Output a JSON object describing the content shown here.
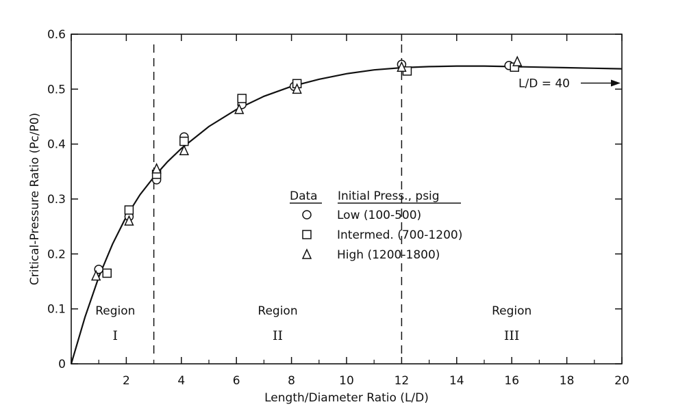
{
  "chart_data": {
    "type": "scatter",
    "xlabel": "Length/Diameter Ratio (L/D)",
    "ylabel": "Critical-Pressure Ratio (Pc/P0)",
    "xlim": [
      0,
      20
    ],
    "ylim": [
      0,
      0.6
    ],
    "x_ticks": [
      0,
      2,
      4,
      6,
      8,
      10,
      12,
      14,
      16,
      18,
      20
    ],
    "x_tick_labels": [
      "",
      "2",
      "4",
      "6",
      "8",
      "10",
      "12",
      "14",
      "16",
      "18",
      "20"
    ],
    "y_ticks": [
      0,
      0.1,
      0.2,
      0.3,
      0.4,
      0.5,
      0.6
    ],
    "y_tick_labels": [
      "0",
      "0.1",
      "0.2",
      "0.3",
      "0.4",
      "0.5",
      "0.6"
    ],
    "grid": false,
    "legend": {
      "position": "center",
      "col1_header": "Data",
      "col2_header": "Initial Press., psig",
      "entries": [
        {
          "marker": "circle",
          "label": "Low (100-500)"
        },
        {
          "marker": "square",
          "label": "Intermed. (700-1200)"
        },
        {
          "marker": "triangle",
          "label": "High (1200-1800)"
        }
      ]
    },
    "series": [
      {
        "marker": "circle",
        "x": [
          1.0,
          2.1,
          3.1,
          4.1,
          6.2,
          8.1,
          12.0,
          15.9
        ],
        "y": [
          0.172,
          0.268,
          0.335,
          0.413,
          0.472,
          0.505,
          0.545,
          0.543
        ]
      },
      {
        "marker": "square",
        "x": [
          1.3,
          2.1,
          3.1,
          4.1,
          6.2,
          8.2,
          12.2,
          16.1
        ],
        "y": [
          0.165,
          0.28,
          0.345,
          0.405,
          0.483,
          0.51,
          0.533,
          0.54
        ]
      },
      {
        "marker": "triangle",
        "x": [
          0.9,
          2.1,
          3.1,
          4.1,
          6.1,
          8.2,
          12.0,
          16.2
        ],
        "y": [
          0.16,
          0.26,
          0.355,
          0.388,
          0.463,
          0.5,
          0.54,
          0.55
        ]
      }
    ],
    "curve": {
      "x": [
        0,
        0.5,
        1,
        1.5,
        2,
        2.5,
        3,
        3.5,
        4,
        5,
        6,
        7,
        8,
        9,
        10,
        11,
        12,
        13,
        14,
        15,
        16,
        17,
        18,
        19,
        20
      ],
      "y": [
        0,
        0.085,
        0.158,
        0.218,
        0.268,
        0.308,
        0.34,
        0.368,
        0.392,
        0.432,
        0.463,
        0.487,
        0.505,
        0.518,
        0.528,
        0.535,
        0.539,
        0.541,
        0.542,
        0.542,
        0.541,
        0.54,
        0.539,
        0.538,
        0.537
      ]
    },
    "dividers": [
      3,
      12
    ],
    "regions": [
      {
        "title": "Region",
        "numeral": "I",
        "x": 1.6
      },
      {
        "title": "Region",
        "numeral": "II",
        "x": 7.5
      },
      {
        "title": "Region",
        "numeral": "III",
        "x": 16.0
      }
    ],
    "annotation": {
      "text": "L/D = 40",
      "y": 0.511
    }
  }
}
